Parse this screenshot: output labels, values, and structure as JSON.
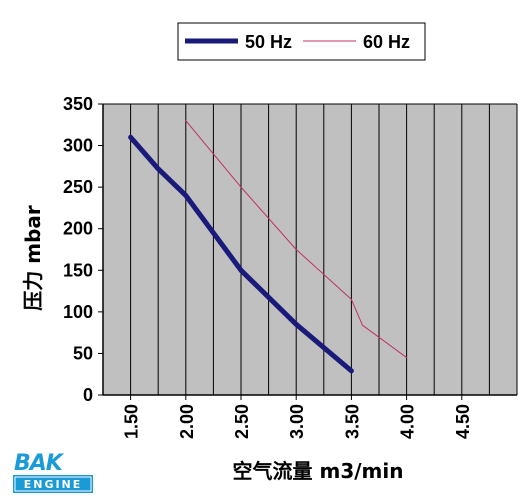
{
  "chart_data": {
    "type": "line",
    "xlabel": "空气流量 m3/min",
    "ylabel": "压力 mbar",
    "xlim": [
      1.25,
      5.0
    ],
    "ylim": [
      0,
      350
    ],
    "x_ticks": [
      "1.50",
      "2.00",
      "2.50",
      "3.00",
      "3.50",
      "4.00",
      "4.50"
    ],
    "y_ticks": [
      "0",
      "50",
      "100",
      "150",
      "200",
      "250",
      "300",
      "350"
    ],
    "grid": true,
    "legend": "top",
    "series": [
      {
        "name": "50 Hz",
        "color": "#1a1a7a",
        "x": [
          1.5,
          1.75,
          2.0,
          2.5,
          3.0,
          3.5
        ],
        "y": [
          310,
          272,
          240,
          150,
          85,
          29
        ]
      },
      {
        "name": "60 Hz",
        "color": "#c0306a",
        "x": [
          2.0,
          2.5,
          3.0,
          3.5,
          3.6,
          4.0
        ],
        "y": [
          330,
          250,
          175,
          115,
          84,
          45
        ]
      }
    ]
  },
  "logo": {
    "main": "BAK",
    "sub": "ENGINE"
  }
}
